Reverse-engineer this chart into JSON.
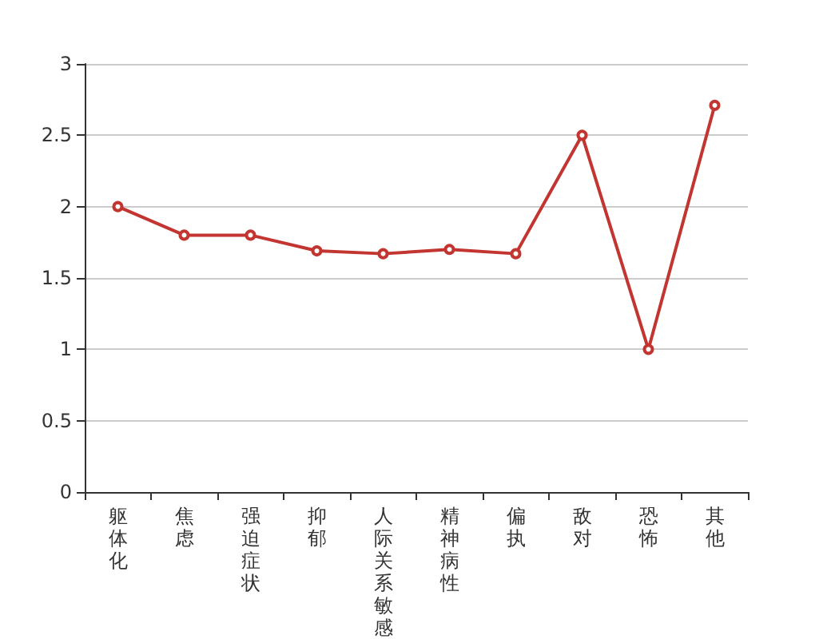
{
  "chart_data": {
    "type": "line",
    "categories": [
      "躯体化",
      "焦虑",
      "强迫症状",
      "抑郁",
      "人际关系敏感",
      "精神病性",
      "偏执",
      "敌对",
      "恐怖",
      "其他"
    ],
    "values": [
      2.0,
      1.8,
      1.8,
      1.69,
      1.67,
      1.7,
      1.67,
      2.5,
      1.0,
      2.71
    ],
    "color": "#c23531",
    "ylim": [
      0,
      3
    ],
    "yticks": [
      0,
      0.5,
      1,
      1.5,
      2,
      2.5,
      3
    ],
    "grid": "y",
    "marker": "circle",
    "line_style": "solid"
  }
}
